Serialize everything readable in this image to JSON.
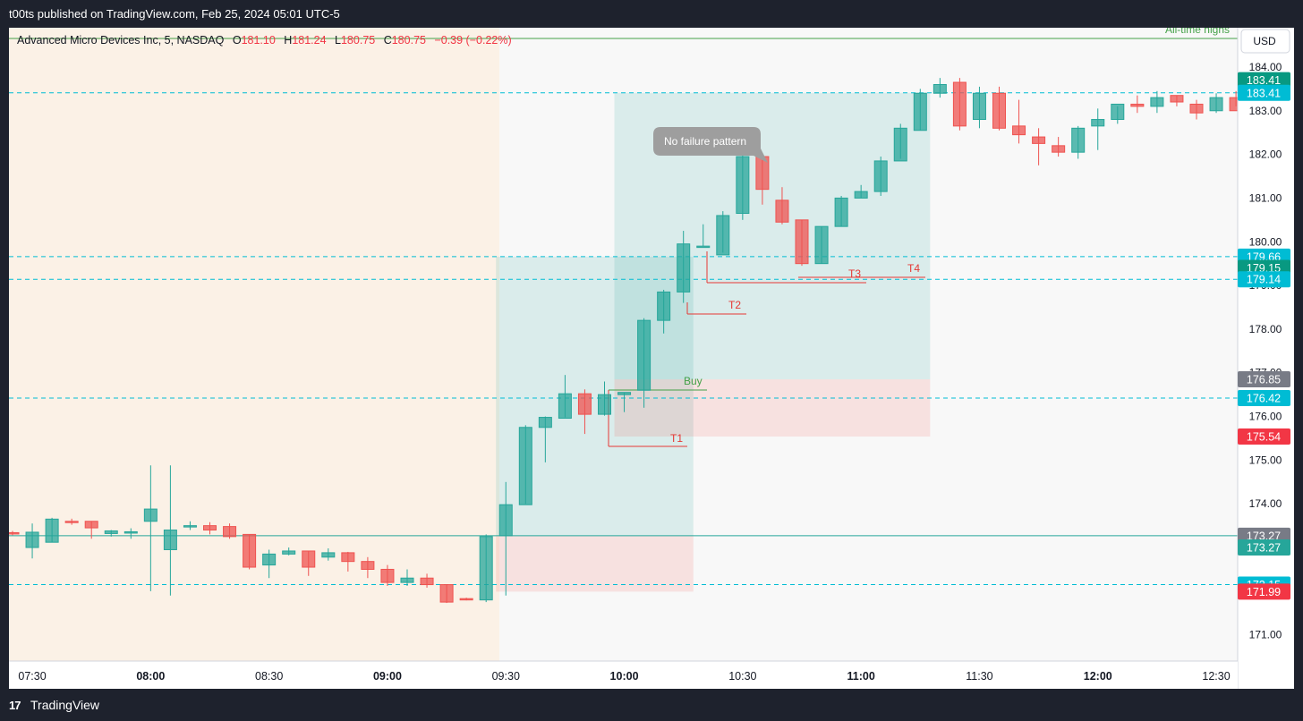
{
  "header": {
    "published": "t00ts published on TradingView.com, Feb 25, 2024 05:01 UTC-5"
  },
  "legend": {
    "name": "Advanced Micro Devices Inc, 5, NASDAQ",
    "o_label": "O",
    "o": "181.10",
    "h_label": "H",
    "h": "181.24",
    "l_label": "L",
    "l": "180.75",
    "c_label": "C",
    "c": "180.75",
    "change": "−0.39 (−0.22%)"
  },
  "currency": "USD",
  "footer": {
    "brand": "TradingView",
    "logo": "17"
  },
  "annotations": {
    "ath": "All-time highs",
    "callout": "No failure pattern",
    "buy": "Buy",
    "t1": "T1",
    "t2": "T2",
    "t3": "T3",
    "t4": "T4"
  },
  "colors": {
    "up": "#26a69a",
    "down": "#ef5350",
    "level": "#00bcd4",
    "premarket_bg": "#fbf1e6",
    "session_bg": "#f8f8f8"
  },
  "chart_data": {
    "type": "candlestick",
    "interval": "5",
    "ylim": [
      170.4,
      184.9
    ],
    "y_ticks": [
      "171.00",
      "172.00",
      "173.00",
      "174.00",
      "175.00",
      "176.00",
      "177.00",
      "178.00",
      "179.00",
      "180.00",
      "181.00",
      "182.00",
      "183.00",
      "184.00"
    ],
    "x_ticks": [
      {
        "label": "07:30",
        "bold": false,
        "i": 1
      },
      {
        "label": "08:00",
        "bold": true,
        "i": 7
      },
      {
        "label": "08:30",
        "bold": false,
        "i": 13
      },
      {
        "label": "09:00",
        "bold": true,
        "i": 19
      },
      {
        "label": "09:30",
        "bold": false,
        "i": 25
      },
      {
        "label": "10:00",
        "bold": true,
        "i": 31
      },
      {
        "label": "10:30",
        "bold": false,
        "i": 37
      },
      {
        "label": "11:00",
        "bold": true,
        "i": 43
      },
      {
        "label": "11:30",
        "bold": false,
        "i": 49
      },
      {
        "label": "12:00",
        "bold": true,
        "i": 55
      },
      {
        "label": "12:30",
        "bold": false,
        "i": 61
      }
    ],
    "candles": [
      [
        173.34,
        173.38,
        173.28,
        173.32
      ],
      [
        173.0,
        173.55,
        172.75,
        173.35
      ],
      [
        173.12,
        173.68,
        173.12,
        173.65
      ],
      [
        173.6,
        173.66,
        173.52,
        173.58
      ],
      [
        173.6,
        173.6,
        173.2,
        173.45
      ],
      [
        173.32,
        173.4,
        173.25,
        173.38
      ],
      [
        173.36,
        173.44,
        173.2,
        173.36
      ],
      [
        173.6,
        174.88,
        172.0,
        173.88
      ],
      [
        172.95,
        174.88,
        171.9,
        173.4
      ],
      [
        173.48,
        173.6,
        173.4,
        173.5
      ],
      [
        173.5,
        173.58,
        173.3,
        173.4
      ],
      [
        173.48,
        173.55,
        173.2,
        173.25
      ],
      [
        173.3,
        173.3,
        172.5,
        172.55
      ],
      [
        172.6,
        172.95,
        172.3,
        172.85
      ],
      [
        172.85,
        173.0,
        172.82,
        172.92
      ],
      [
        172.92,
        172.92,
        172.35,
        172.55
      ],
      [
        172.78,
        172.98,
        172.7,
        172.88
      ],
      [
        172.88,
        172.9,
        172.45,
        172.68
      ],
      [
        172.68,
        172.78,
        172.3,
        172.5
      ],
      [
        172.5,
        172.6,
        172.12,
        172.2
      ],
      [
        172.2,
        172.5,
        172.12,
        172.3
      ],
      [
        172.3,
        172.4,
        172.08,
        172.15
      ],
      [
        172.15,
        172.15,
        171.73,
        171.75
      ],
      [
        171.83,
        171.85,
        171.79,
        171.81
      ],
      [
        171.8,
        173.3,
        171.75,
        173.25
      ],
      [
        173.27,
        174.5,
        171.9,
        173.98
      ],
      [
        173.98,
        175.8,
        174.0,
        175.75
      ],
      [
        175.75,
        176.0,
        174.95,
        175.98
      ],
      [
        175.96,
        176.95,
        175.98,
        176.52
      ],
      [
        176.52,
        176.62,
        175.6,
        176.05
      ],
      [
        176.05,
        176.8,
        176.02,
        176.5
      ],
      [
        176.5,
        176.55,
        176.1,
        176.55
      ],
      [
        176.6,
        178.25,
        176.2,
        178.2
      ],
      [
        178.2,
        178.9,
        177.9,
        178.85
      ],
      [
        178.85,
        180.25,
        178.6,
        179.95
      ],
      [
        179.9,
        180.4,
        179.9,
        179.9
      ],
      [
        179.7,
        180.7,
        179.75,
        180.6
      ],
      [
        180.65,
        182.0,
        180.5,
        181.95
      ],
      [
        181.95,
        182.0,
        180.85,
        181.2
      ],
      [
        180.95,
        181.25,
        180.4,
        180.45
      ],
      [
        180.5,
        180.5,
        179.45,
        179.5
      ],
      [
        179.5,
        180.35,
        179.5,
        180.35
      ],
      [
        180.35,
        181.05,
        180.35,
        181.0
      ],
      [
        181.0,
        181.3,
        181.0,
        181.15
      ],
      [
        181.15,
        181.95,
        181.05,
        181.85
      ],
      [
        181.85,
        182.7,
        181.9,
        182.6
      ],
      [
        182.55,
        183.5,
        182.55,
        183.4
      ],
      [
        183.4,
        183.75,
        183.3,
        183.6
      ],
      [
        183.65,
        183.75,
        182.55,
        182.65
      ],
      [
        182.8,
        183.55,
        182.6,
        183.4
      ],
      [
        183.4,
        183.55,
        182.55,
        182.6
      ],
      [
        182.65,
        183.25,
        182.25,
        182.45
      ],
      [
        182.4,
        182.6,
        181.75,
        182.25
      ],
      [
        182.2,
        182.4,
        181.95,
        182.05
      ],
      [
        182.05,
        182.65,
        181.9,
        182.6
      ],
      [
        182.65,
        183.05,
        182.1,
        182.8
      ],
      [
        182.8,
        183.1,
        182.7,
        183.15
      ],
      [
        183.15,
        183.35,
        182.95,
        183.1
      ],
      [
        183.1,
        183.45,
        182.95,
        183.3
      ],
      [
        183.35,
        183.35,
        183.1,
        183.2
      ],
      [
        183.15,
        183.25,
        182.8,
        182.95
      ],
      [
        183.0,
        183.4,
        182.95,
        183.3
      ],
      [
        183.3,
        183.45,
        183.1,
        183.0
      ]
    ],
    "levels": [
      {
        "label": "183.41",
        "price": 183.41,
        "color": "#00bcd4",
        "dashed": true
      },
      {
        "label": "179.66",
        "price": 179.66,
        "color": "#00bcd4",
        "dashed": true
      },
      {
        "label": "179.14",
        "price": 179.14,
        "color": "#00bcd4",
        "dashed": true
      },
      {
        "label": "176.42",
        "price": 176.42,
        "color": "#00bcd4",
        "dashed": true
      },
      {
        "label": "173.27",
        "price": 173.27,
        "color": "#26a69a",
        "dashed": false
      },
      {
        "label": "172.15",
        "price": 172.15,
        "color": "#00bcd4",
        "dashed": true
      }
    ],
    "axis_tags": [
      {
        "label": "183.41",
        "price": 183.7,
        "color": "#089981"
      },
      {
        "label": "183.41",
        "price": 183.41,
        "color": "#00bcd4"
      },
      {
        "label": "179.66",
        "price": 179.66,
        "color": "#00bcd4"
      },
      {
        "label": "179.15",
        "price": 179.4,
        "color": "#089981"
      },
      {
        "label": "179.14",
        "price": 179.14,
        "color": "#00bcd4"
      },
      {
        "label": "176.85",
        "price": 176.85,
        "color": "#787b86"
      },
      {
        "label": "176.42",
        "price": 176.42,
        "color": "#00bcd4"
      },
      {
        "label": "175.54",
        "price": 175.54,
        "color": "#f23645"
      },
      {
        "label": "173.27",
        "price": 173.27,
        "color": "#787b86"
      },
      {
        "label": "173.27",
        "price": 173.0,
        "color": "#26a69a"
      },
      {
        "label": "172.15",
        "price": 172.15,
        "color": "#00bcd4"
      },
      {
        "label": "171.99",
        "price": 171.99,
        "color": "#f23645"
      }
    ],
    "sessions": {
      "premarket_end_i": 24.2
    },
    "positions": [
      {
        "entry": 173.27,
        "target": 179.66,
        "stop": 171.99,
        "i0": 24.5,
        "i1": 34.5
      },
      {
        "entry": 176.85,
        "target": 183.41,
        "stop": 175.54,
        "i0": 30.5,
        "i1": 46.5
      }
    ]
  }
}
